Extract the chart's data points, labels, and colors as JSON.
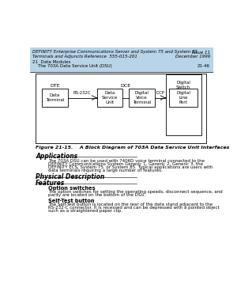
{
  "header_bg": "#b8d4e8",
  "header_line1": "DEFINITY Enterprise Communications Server and System 75 and System 85",
  "header_line1_right": "Issue 11",
  "header_line2": "Terminals and Adjuncts Reference  555-015-201",
  "header_line2_right": "December 1999",
  "header_line3": "21  Data Modules",
  "header_line4": "    The 703A Data Service Unit (DSU)",
  "header_line4_right": "21-46",
  "fig_caption": "Figure 21-15.    A Block Diagram of 703A Data Service Unit Interfaces",
  "section_applications": "Applications",
  "app_text1": "The 703A DSU can be used with 7406D voice terminal connected to the",
  "app_text2": "DEFINITY Communications System Generic 1, Generic 2, Generic 3, the",
  "app_text3": "DEFINITY ECS, System 75, or System 85. Typical applications are users with",
  "app_text4": "data terminals requiring a large number of features.",
  "section_physical": "Physical Description",
  "section_features": "Features",
  "subsection_option": "Option switches",
  "option_text1": "The option switches for setting the operating speeds, disconnect sequence, and",
  "option_text2": "parity are located on the bottom of the DSU.",
  "subsection_selftest": "Self-Test button",
  "selftest_text1": "The Self-Test button is located on the rear of the data stand adjacent to the",
  "selftest_text2": "RS-232-C connector. It is recessed and can be depressed with a pointed object",
  "selftest_text3": "such as a straightened paper clip.",
  "label_DTE": "DTE",
  "label_DCE": "DCE",
  "box_DataTerminal": "Data\nTerminal",
  "box_DSU": "Data\nService\nUnit",
  "box_DVT": "Digital\nVoice\nTerminal",
  "box_DLP": "Digital\nLine\nPort",
  "box_DigitalSwitch": "Digital\nSwitch",
  "label_RS232C": "RS-232C",
  "label_DCP": "DCP",
  "page_bg": "#ffffff"
}
